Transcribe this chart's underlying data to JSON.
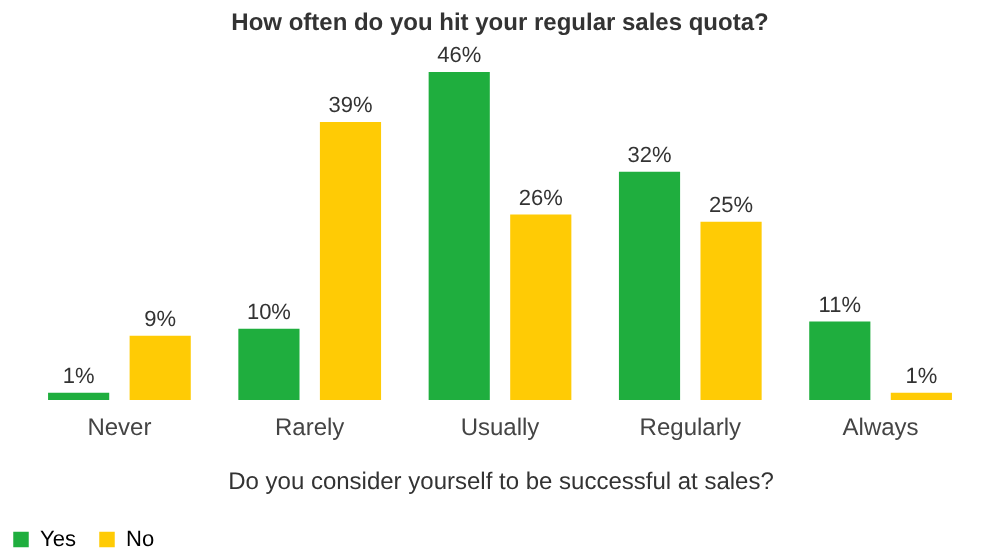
{
  "chart_data": {
    "type": "bar",
    "title": "How often do you hit your regular sales quota?",
    "xlabel": "Do you consider yourself to be successful at sales?",
    "categories": [
      "Never",
      "Rarely",
      "Usually",
      "Regularly",
      "Always"
    ],
    "series": [
      {
        "name": "Yes",
        "color": "#1fae3e",
        "values": [
          1,
          10,
          46,
          32,
          11
        ],
        "value_labels": [
          "1%",
          "10%",
          "46%",
          "32%",
          "11%"
        ]
      },
      {
        "name": "No",
        "color": "#ffcb05",
        "values": [
          9,
          39,
          26,
          25,
          1
        ],
        "value_labels": [
          "9%",
          "39%",
          "26%",
          "25%",
          "1%"
        ]
      }
    ],
    "legend": "bottom",
    "grid": false,
    "tick_labels": "x"
  }
}
